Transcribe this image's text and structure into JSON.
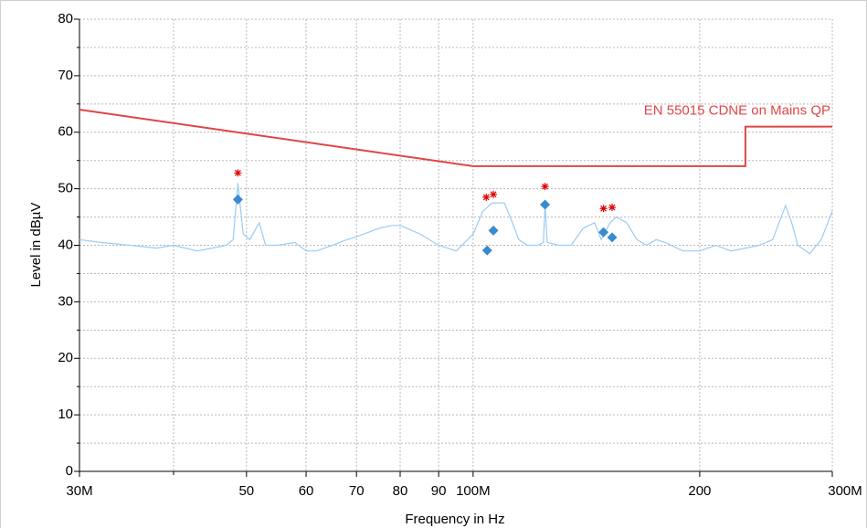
{
  "chart_data": {
    "type": "line",
    "xlabel": "Frequency in Hz",
    "ylabel": "Level in dBµV",
    "xscale": "log",
    "xlim": [
      30000000,
      300000000
    ],
    "xticks": [
      {
        "value": 30000000,
        "label": "30M"
      },
      {
        "value": 50000000,
        "label": "50"
      },
      {
        "value": 60000000,
        "label": "60"
      },
      {
        "value": 70000000,
        "label": "70"
      },
      {
        "value": 80000000,
        "label": "80"
      },
      {
        "value": 90000000,
        "label": "90"
      },
      {
        "value": 100000000,
        "label": "100M"
      },
      {
        "value": 200000000,
        "label": "200"
      },
      {
        "value": 300000000,
        "label": "300M"
      }
    ],
    "xminor": [
      40000000
    ],
    "ylim": [
      0,
      80
    ],
    "yticks": [
      0,
      10,
      20,
      30,
      40,
      50,
      60,
      70,
      80
    ],
    "yminor": [
      5,
      15,
      25,
      35,
      45,
      55,
      65,
      75
    ],
    "grid": true,
    "series": [
      {
        "kind": "line",
        "color": "#9ccbf3",
        "x": [
          30000000,
          32000000,
          35000000,
          38000000,
          40000000,
          43000000,
          45000000,
          47000000,
          48000000,
          48700000,
          49500000,
          50500000,
          52000000,
          53000000,
          55000000,
          58000000,
          60000000,
          62000000,
          65000000,
          68000000,
          70000000,
          75000000,
          78000000,
          80000000,
          85000000,
          90000000,
          95000000,
          100000000,
          103000000,
          106000000,
          110000000,
          112000000,
          115000000,
          118000000,
          122000000,
          124000000,
          124600000,
          125500000,
          130000000,
          135000000,
          140000000,
          145000000,
          148000000,
          152000000,
          155000000,
          160000000,
          165000000,
          170000000,
          175000000,
          180000000,
          190000000,
          200000000,
          210000000,
          220000000,
          230000000,
          240000000,
          250000000,
          255000000,
          260000000,
          265000000,
          270000000,
          280000000,
          290000000,
          300000000
        ],
        "values": [
          41,
          40.5,
          40,
          39.5,
          40,
          39,
          39.5,
          40,
          41,
          51,
          42,
          41,
          44,
          40,
          40,
          40.5,
          39,
          39,
          40,
          41,
          41.5,
          43,
          43.5,
          43.5,
          42,
          40,
          39,
          42,
          46,
          47.5,
          47.5,
          45,
          41,
          40,
          40,
          40.5,
          47,
          40.5,
          40,
          40,
          43,
          44,
          41,
          44,
          45,
          44,
          41,
          40,
          41,
          40.5,
          39,
          39,
          40,
          39,
          39.5,
          40,
          41,
          44,
          47,
          44,
          40,
          38.5,
          41,
          46
        ]
      },
      {
        "kind": "line",
        "name": "EN 55015 CDNE on Mains QP",
        "color": "#e04545",
        "x": [
          30000000,
          100000000,
          230000000,
          230000000,
          300000000
        ],
        "values": [
          64,
          54,
          54,
          61,
          61
        ]
      },
      {
        "kind": "asterisk",
        "color": "#e00000",
        "x": [
          48700000,
          104100000,
          106400000,
          124600000,
          149000000,
          153000000
        ],
        "values": [
          52.8,
          48.5,
          49,
          50.4,
          46.5,
          46.7
        ]
      },
      {
        "kind": "diamond",
        "color": "#3a8ad0",
        "x": [
          48700000,
          104400000,
          106400000,
          124600000,
          149000000,
          153000000
        ],
        "values": [
          48.1,
          39.1,
          42.6,
          47.2,
          42.3,
          41.4
        ]
      }
    ]
  }
}
